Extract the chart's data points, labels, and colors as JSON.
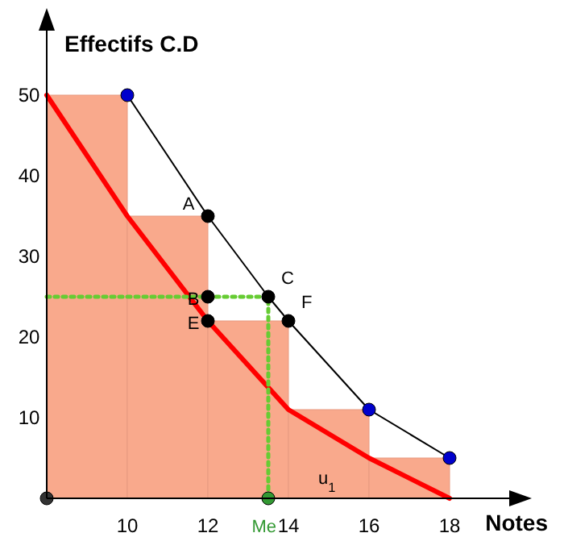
{
  "chart_data": {
    "type": "histogram",
    "xlabel": "Notes",
    "ylabel": "Effectifs C.D",
    "bins": [
      8,
      10,
      12,
      14,
      16,
      18
    ],
    "values": [
      50,
      35,
      22,
      11,
      5
    ],
    "color": "#f9a98c",
    "series": [
      {
        "type": "line",
        "x": [
          8,
          10,
          12,
          14,
          16,
          18
        ],
        "values": [
          50,
          35,
          22,
          11,
          5,
          0
        ],
        "color": "#ff0000",
        "marker": "none"
      },
      {
        "type": "line",
        "x": [
          10,
          12,
          13.5,
          14,
          16,
          18
        ],
        "values": [
          50,
          35,
          25,
          22,
          11,
          5
        ],
        "color": "#000000",
        "marker": "none"
      },
      {
        "type": "line",
        "x": [
          8,
          13.5,
          13.5
        ],
        "values": [
          25,
          25,
          0
        ],
        "color": "#66cc33",
        "marker": "none",
        "line_style": "dotted"
      },
      {
        "type": "scatter",
        "x": [
          10,
          16,
          18,
          12,
          12,
          13.5,
          12,
          14,
          13.5,
          8
        ],
        "values": [
          50,
          11,
          5,
          35,
          25,
          25,
          22,
          22,
          0,
          0
        ],
        "colors": [
          "#0000cc",
          "#0000cc",
          "#0000cc",
          "#000000",
          "#000000",
          "#000000",
          "#000000",
          "#000000",
          "#339933",
          "#333333"
        ],
        "marker": "circle"
      }
    ],
    "annotations": [
      {
        "text": "A",
        "x": 12,
        "y": 35
      },
      {
        "text": "B",
        "x": 12,
        "y": 25
      },
      {
        "text": "C",
        "x": 13.5,
        "y": 25
      },
      {
        "text": "E",
        "x": 12,
        "y": 22
      },
      {
        "text": "F",
        "x": 14,
        "y": 22
      },
      {
        "text": "Me",
        "x": 13.5,
        "y": 0
      },
      {
        "text": "u$_{1}$",
        "x": 14.5,
        "y": 0
      }
    ],
    "xlim": [
      8,
      19.8
    ],
    "ylim": [
      0,
      60
    ],
    "xticks": [
      10,
      12,
      14,
      16,
      18
    ],
    "yticks": [
      10,
      20,
      30,
      40,
      50
    ],
    "grid": false
  }
}
